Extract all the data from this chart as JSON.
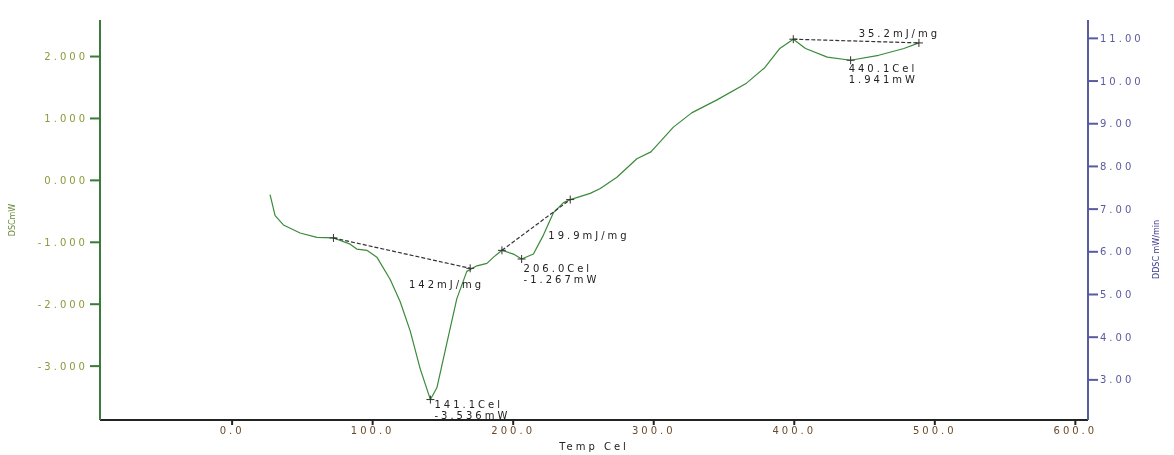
{
  "chart_data": {
    "type": "line",
    "xlabel": "Temp Cel",
    "ylabel": "DSCmW",
    "y2label": "DDSC mW/min",
    "xlim": [
      -94,
      609
    ],
    "xticks": [
      {
        "value": 0,
        "label": "0.0"
      },
      {
        "value": 100,
        "label": "100.0"
      },
      {
        "value": 200,
        "label": "200.0"
      },
      {
        "value": 300,
        "label": "300.0"
      },
      {
        "value": 400,
        "label": "400.0"
      },
      {
        "value": 500,
        "label": "500.0"
      },
      {
        "value": 600,
        "label": "600.0"
      }
    ],
    "ylim": [
      -3.87,
      2.59
    ],
    "yticks": [
      {
        "value": -3,
        "label": "-3.000"
      },
      {
        "value": -2,
        "label": "-2.000"
      },
      {
        "value": -1,
        "label": "-1.000"
      },
      {
        "value": 0,
        "label": "0.000"
      },
      {
        "value": 1,
        "label": "1.000"
      },
      {
        "value": 2,
        "label": "2.000"
      }
    ],
    "y2lim": [
      2.06,
      11.43
    ],
    "y2ticks": [
      {
        "value": 3,
        "label": "3.00"
      },
      {
        "value": 4,
        "label": "4.00"
      },
      {
        "value": 5,
        "label": "5.00"
      },
      {
        "value": 6,
        "label": "6.00"
      },
      {
        "value": 7,
        "label": "7.00"
      },
      {
        "value": 8,
        "label": "8.00"
      },
      {
        "value": 9,
        "label": "9.00"
      },
      {
        "value": 10,
        "label": "10.00"
      },
      {
        "value": 11,
        "label": "11.00"
      }
    ],
    "series": [
      {
        "color": "#3a8a3a",
        "marker": "none",
        "line_style": "solid",
        "x": [
          27,
          30.6,
          36.5,
          48.4,
          60.3,
          72.1,
          84,
          88.7,
          95.9,
          103,
          112.5,
          119.6,
          126.7,
          133.8,
          141.1,
          145.7,
          152.8,
          159.9,
          167,
          174.2,
          181.3,
          186,
          192,
          200.2,
          206,
          214.4,
          221.6,
          228.7,
          235.8,
          240.6,
          254.8,
          262,
          273.8,
          288,
          298,
          314,
          327,
          345,
          366,
          379,
          389.7,
          399.3,
          408,
          423.5,
          440.1,
          460,
          478,
          488.7
        ],
        "values": [
          -0.23,
          -0.57,
          -0.72,
          -0.85,
          -0.92,
          -0.93,
          -1.03,
          -1.11,
          -1.13,
          -1.24,
          -1.6,
          -1.96,
          -2.43,
          -3.04,
          -3.54,
          -3.35,
          -2.63,
          -1.91,
          -1.47,
          -1.38,
          -1.34,
          -1.24,
          -1.13,
          -1.19,
          -1.27,
          -1.19,
          -0.88,
          -0.52,
          -0.36,
          -0.31,
          -0.21,
          -0.13,
          0.05,
          0.35,
          0.46,
          0.86,
          1.09,
          1.3,
          1.57,
          1.82,
          2.13,
          2.28,
          2.13,
          1.99,
          1.94,
          2.02,
          2.13,
          2.22
        ]
      },
      {
        "color": "#333333",
        "marker": "cross",
        "line_style": "dashed",
        "x": [
          72.1,
          169.4
        ],
        "values": [
          -0.93,
          -1.42
        ]
      },
      {
        "color": "#333333",
        "marker": "cross",
        "line_style": "dashed",
        "x": [
          192,
          240.6
        ],
        "values": [
          -1.13,
          -0.31
        ]
      },
      {
        "color": "#333333",
        "marker": "cross",
        "line_style": "dashed",
        "x": [
          399.3,
          488.7
        ],
        "values": [
          2.28,
          2.22
        ]
      },
      {
        "type": "scatter",
        "color": "#333333",
        "marker": "cross",
        "x": [
          141.1,
          206,
          440.1
        ],
        "values": [
          -3.54,
          -1.27,
          1.94
        ]
      }
    ],
    "annotations": [
      {
        "text": "142mJ/mg",
        "x": 169.4,
        "y": -1.42
      },
      {
        "text": "19.9mJ/mg",
        "x": 215,
        "y": -0.72
      },
      {
        "text": "206.0Cel",
        "x": 206,
        "y": -1.267
      },
      {
        "text": "-1.267mW",
        "x": 206,
        "y": -1.267
      },
      {
        "text": "141.1Cel",
        "x": 141.1,
        "y": -3.536
      },
      {
        "text": "-3.536mW",
        "x": 141.1,
        "y": -3.536
      },
      {
        "text": "35.2mJ/mg",
        "x": 440.1,
        "y": 2.25
      },
      {
        "text": "440.1Cel",
        "x": 440.1,
        "y": 1.941
      },
      {
        "text": "1.941mW",
        "x": 440.1,
        "y": 1.941
      }
    ]
  }
}
